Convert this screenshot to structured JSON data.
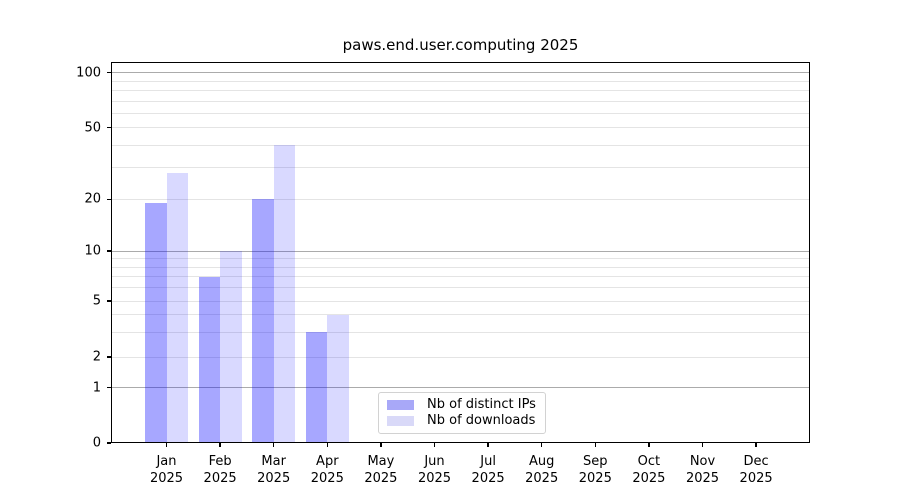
{
  "chart_data": {
    "type": "bar",
    "title": "paws.end.user.computing 2025",
    "categories": [
      "Jan",
      "Feb",
      "Mar",
      "Apr",
      "May",
      "Jun",
      "Jul",
      "Aug",
      "Sep",
      "Oct",
      "Nov",
      "Dec"
    ],
    "category_year_line": "2025",
    "series": [
      {
        "name": "Nb of distinct IPs",
        "color": "rgba(0,0,255,0.345)",
        "solid_color": "#a8a8f8",
        "values": [
          19,
          7,
          20,
          3,
          0,
          0,
          0,
          0,
          0,
          0,
          0,
          0
        ]
      },
      {
        "name": "Nb of downloads",
        "color": "rgba(0,0,255,0.15)",
        "solid_color": "#d9d9f8",
        "values": [
          28,
          10,
          40,
          4,
          0,
          0,
          0,
          0,
          0,
          0,
          0,
          0
        ]
      }
    ],
    "xlabel": "",
    "ylabel": "",
    "y_axis": {
      "scale": "symlog-like",
      "labeled_ticks": [
        0,
        1,
        2,
        5,
        10,
        20,
        50,
        100
      ],
      "decade_gridlines": [
        1,
        10,
        100
      ],
      "minor_gridlines": [
        2,
        3,
        4,
        5,
        6,
        7,
        8,
        9,
        20,
        30,
        40,
        50,
        60,
        70,
        80,
        90
      ],
      "ylim": [
        0,
        115
      ],
      "grid": "on"
    },
    "legend_position": "bottom-center"
  },
  "legend": {
    "items": [
      {
        "label": "Nb of distinct IPs"
      },
      {
        "label": "Nb of downloads"
      }
    ]
  }
}
